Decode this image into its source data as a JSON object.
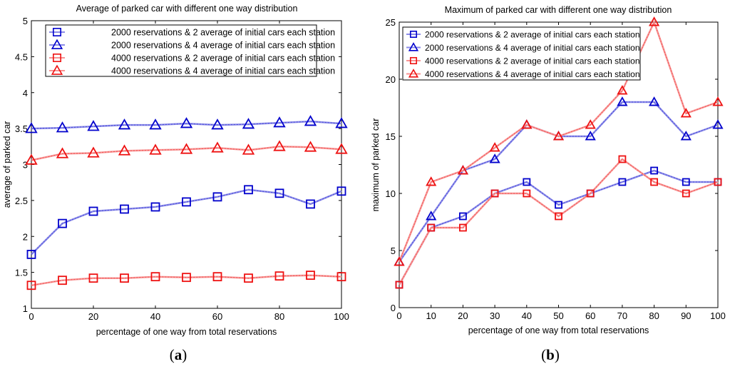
{
  "chart_data": [
    {
      "type": "line",
      "title": "Average of parked car with different one way distribution",
      "xlabel": "percentage of one way from total reservations",
      "ylabel": "average of parked car",
      "panel_label": {
        "open": "(",
        "letter": "a",
        "close": ")"
      },
      "x": [
        0,
        10,
        20,
        30,
        40,
        50,
        60,
        70,
        80,
        90,
        100
      ],
      "xlim": [
        0,
        100
      ],
      "ylim": [
        1,
        5
      ],
      "xticks": [
        "0",
        "20",
        "40",
        "60",
        "80",
        "100"
      ],
      "yticks": [
        "1",
        "1.5",
        "2",
        "2.5",
        "3",
        "3.5",
        "4",
        "4.5",
        "5"
      ],
      "series": [
        {
          "name": "2000 reservations & 2 average of initial cars each station",
          "marker": "square",
          "color": "#0000cc",
          "values": [
            1.75,
            2.18,
            2.35,
            2.38,
            2.41,
            2.48,
            2.55,
            2.65,
            2.6,
            2.45,
            2.63
          ]
        },
        {
          "name": "2000 reservations & 4 average of initial cars each station",
          "marker": "triangle",
          "color": "#0000cc",
          "values": [
            3.5,
            3.51,
            3.53,
            3.55,
            3.55,
            3.57,
            3.55,
            3.56,
            3.58,
            3.6,
            3.57
          ]
        },
        {
          "name": "4000 reservations & 2 average of initial cars each station",
          "marker": "square",
          "color": "#ee1111",
          "values": [
            1.32,
            1.39,
            1.42,
            1.42,
            1.44,
            1.43,
            1.44,
            1.42,
            1.45,
            1.46,
            1.44
          ]
        },
        {
          "name": "4000 reservations & 4 average of initial cars each station",
          "marker": "triangle",
          "color": "#ee1111",
          "values": [
            3.06,
            3.15,
            3.16,
            3.19,
            3.2,
            3.21,
            3.23,
            3.2,
            3.25,
            3.24,
            3.21
          ]
        }
      ],
      "legend": "top-left",
      "grid": false
    },
    {
      "type": "line",
      "title": "Maximum of parked car with different one way distribution",
      "xlabel": "percentage of one way from total reservations",
      "ylabel": "maximum of parked car",
      "panel_label": {
        "open": "(",
        "letter": "b",
        "close": ")"
      },
      "x": [
        0,
        10,
        20,
        30,
        40,
        50,
        60,
        70,
        80,
        90,
        100
      ],
      "xlim": [
        0,
        100
      ],
      "ylim": [
        0,
        25
      ],
      "xticks": [
        "0",
        "10",
        "20",
        "30",
        "40",
        "50",
        "60",
        "70",
        "80",
        "90",
        "100"
      ],
      "yticks": [
        "0",
        "5",
        "10",
        "15",
        "20",
        "25"
      ],
      "series": [
        {
          "name": "2000 reservations & 2 average of initial cars each station",
          "marker": "square",
          "color": "#0000cc",
          "values": [
            2,
            7,
            8,
            10,
            11,
            9,
            10,
            11,
            12,
            11,
            11
          ]
        },
        {
          "name": "2000 reservations & 4 average of initial cars each station",
          "marker": "triangle",
          "color": "#0000cc",
          "values": [
            4,
            8,
            12,
            13,
            16,
            15,
            15,
            18,
            18,
            15,
            16
          ]
        },
        {
          "name": "4000 reservations & 2 average of initial cars each station",
          "marker": "square",
          "color": "#ee1111",
          "values": [
            2,
            7,
            7,
            10,
            10,
            8,
            10,
            13,
            11,
            10,
            11
          ]
        },
        {
          "name": "4000 reservations & 4 average of initial cars each station",
          "marker": "triangle",
          "color": "#ee1111",
          "values": [
            4,
            11,
            12,
            14,
            16,
            15,
            16,
            19,
            25,
            17,
            18
          ]
        }
      ],
      "legend": "top-left",
      "grid": false
    }
  ]
}
